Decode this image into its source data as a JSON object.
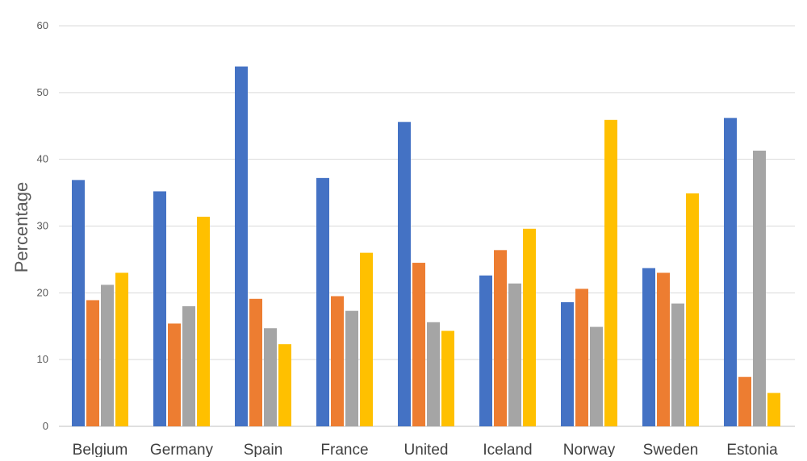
{
  "chart_data": {
    "type": "bar",
    "title": "",
    "xlabel": "",
    "ylabel": "Percentage",
    "ylim": [
      0,
      60
    ],
    "yticks": [
      0,
      10,
      20,
      30,
      40,
      50,
      60
    ],
    "grid": true,
    "legend": "none",
    "categories": [
      "Belgium",
      "Germany",
      "Spain",
      "France",
      "United",
      "Iceland",
      "Norway",
      "Sweden",
      "Estonia"
    ],
    "series": [
      {
        "color": "#4472C4",
        "values": [
          36.9,
          35.2,
          53.9,
          37.2,
          45.6,
          22.6,
          18.6,
          23.7,
          46.2
        ]
      },
      {
        "color": "#ED7D31",
        "values": [
          18.9,
          15.4,
          19.1,
          19.5,
          24.5,
          26.4,
          20.6,
          23.0,
          7.4
        ]
      },
      {
        "color": "#A5A5A5",
        "values": [
          21.2,
          18.0,
          14.7,
          17.3,
          15.6,
          21.4,
          14.9,
          18.4,
          41.3
        ]
      },
      {
        "color": "#FFC000",
        "values": [
          23.0,
          31.4,
          12.3,
          26.0,
          14.3,
          29.6,
          45.9,
          34.9,
          5.0
        ]
      }
    ]
  }
}
